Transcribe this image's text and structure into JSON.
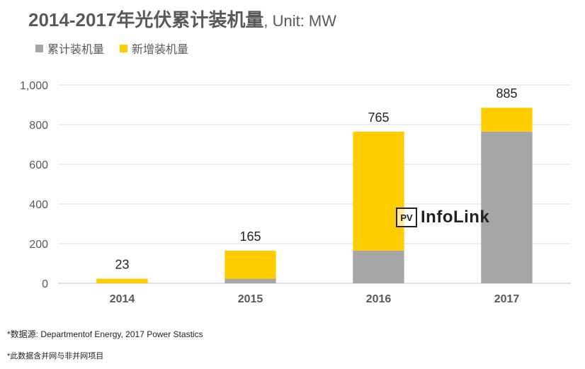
{
  "title": {
    "main": "2014-2017年光伏累计装机量",
    "unit": ", Unit: MW"
  },
  "legend": [
    {
      "label": "累计装机量",
      "color": "#a6a6a6"
    },
    {
      "label": "新增装机量",
      "color": "#ffcc00"
    }
  ],
  "watermark": {
    "box": "PV",
    "text": "InfoLink"
  },
  "notes": {
    "source": "*数据源: Departmentof Energy, 2017 Power Stastics",
    "scope": "*此数据含并网与非并网项目"
  },
  "chart_data": {
    "type": "bar",
    "stacked": true,
    "categories": [
      "2014",
      "2015",
      "2016",
      "2017"
    ],
    "series": [
      {
        "name": "累计装机量",
        "values": [
          0,
          23,
          165,
          765
        ],
        "color": "#a6a6a6"
      },
      {
        "name": "新增装机量",
        "values": [
          23,
          142,
          600,
          120
        ],
        "color": "#ffcc00"
      }
    ],
    "totals": [
      23,
      165,
      765,
      885
    ],
    "ylim": [
      0,
      1000
    ],
    "yticks": [
      0,
      200,
      400,
      600,
      800,
      1000
    ],
    "ytick_labels": [
      "0",
      "200",
      "400",
      "600",
      "800",
      "1,000"
    ],
    "grid": true,
    "legend_position": "top-left"
  }
}
